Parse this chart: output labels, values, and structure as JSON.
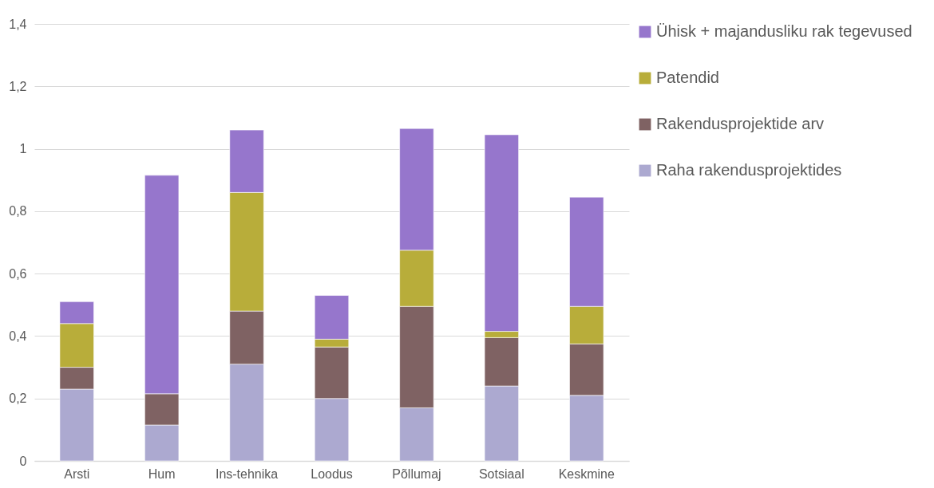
{
  "chart_data": {
    "type": "bar",
    "stacked": true,
    "categories": [
      "Arsti",
      "Hum",
      "Ins-tehnika",
      "Loodus",
      "Põllumaj",
      "Sotsiaal",
      "Keskmine"
    ],
    "series": [
      {
        "name": "Raha rakendusprojektides",
        "color": "#aca9d0",
        "values": [
          0.23,
          0.115,
          0.31,
          0.2,
          0.17,
          0.24,
          0.21
        ]
      },
      {
        "name": "Rakendusprojektide arv",
        "color": "#7f6263",
        "values": [
          0.07,
          0.1,
          0.17,
          0.165,
          0.325,
          0.155,
          0.165
        ]
      },
      {
        "name": "Patendid",
        "color": "#b8ad3a",
        "values": [
          0.14,
          null,
          0.38,
          0.025,
          0.18,
          0.02,
          0.12
        ]
      },
      {
        "name": "Ühisk + majandusliku rak tegevused",
        "color": "#9676cc",
        "values": [
          0.07,
          0.7,
          0.2,
          0.14,
          0.39,
          0.63,
          0.35
        ]
      }
    ],
    "ylim": [
      0,
      1.4
    ],
    "yticks": [
      0,
      {
        "value": 0.2,
        "label": "0,2"
      },
      {
        "value": 0.4,
        "label": "0,4"
      },
      {
        "value": 0.6,
        "label": "0,6"
      },
      {
        "value": 0.8,
        "label": "0,8"
      },
      1,
      {
        "value": 1.2,
        "label": "1,2"
      },
      {
        "value": 1.4,
        "label": "1,4"
      }
    ],
    "grid": "y",
    "legend": "right"
  }
}
